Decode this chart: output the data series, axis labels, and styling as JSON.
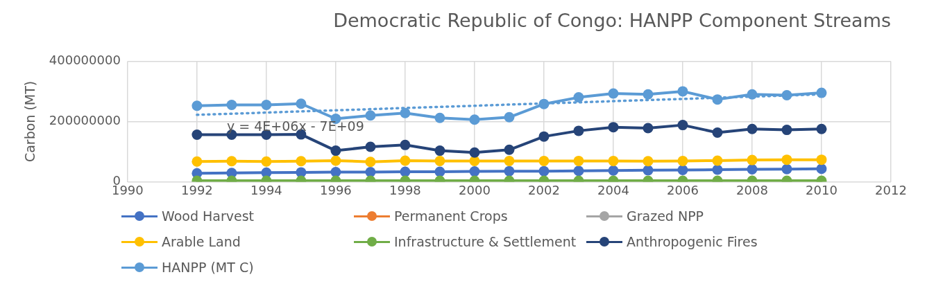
{
  "chart_data": {
    "type": "line",
    "title": "Democratic Republic of Congo: HANPP Component Streams",
    "ylabel": "Carbon (MT)",
    "x": [
      1992,
      1993,
      1994,
      1995,
      1996,
      1997,
      1998,
      1999,
      2000,
      2001,
      2002,
      2003,
      2004,
      2005,
      2006,
      2007,
      2008,
      2009,
      2010
    ],
    "xlim": [
      1990,
      2012
    ],
    "xticks": [
      1990,
      1992,
      1994,
      1996,
      1998,
      2000,
      2002,
      2004,
      2006,
      2008,
      2010,
      2012
    ],
    "ylim": [
      0,
      400000000
    ],
    "yticks": [
      0,
      200000000,
      400000000
    ],
    "grid": true,
    "legend": "bottom",
    "marker": "circle",
    "line_style": "solid",
    "series": [
      {
        "name": "Wood Harvest",
        "color": "#4472c4",
        "values": [
          28000000,
          29000000,
          30000000,
          31000000,
          32000000,
          32000000,
          33000000,
          33000000,
          34000000,
          35000000,
          35000000,
          36000000,
          37000000,
          38000000,
          39000000,
          40000000,
          41000000,
          42000000,
          43000000
        ]
      },
      {
        "name": "Permanent Crops",
        "color": "#ed7d31",
        "values": [
          null,
          null,
          null,
          null,
          null,
          null,
          null,
          null,
          null,
          null,
          null,
          null,
          null,
          null,
          null,
          null,
          null,
          null,
          null
        ]
      },
      {
        "name": "Grazed NPP",
        "color": "#a5a5a5",
        "values": [
          null,
          null,
          null,
          null,
          null,
          null,
          null,
          null,
          null,
          null,
          null,
          null,
          null,
          null,
          null,
          null,
          null,
          null,
          null
        ]
      },
      {
        "name": "Arable Land",
        "color": "#ffc000",
        "values": [
          67000000,
          68000000,
          67000000,
          68000000,
          70000000,
          66000000,
          70000000,
          69000000,
          69000000,
          69000000,
          69000000,
          69000000,
          69000000,
          68000000,
          69000000,
          70000000,
          72000000,
          73000000,
          73000000
        ]
      },
      {
        "name": "Infrastructure & Settlement",
        "color": "#70ad47",
        "values": [
          3000000,
          3000000,
          3000000,
          3000000,
          3000000,
          3000000,
          3000000,
          3000000,
          3000000,
          3000000,
          3000000,
          3000000,
          3000000,
          3000000,
          3000000,
          3000000,
          3000000,
          3000000,
          3000000
        ]
      },
      {
        "name": "Anthropogenic Fires",
        "color": "#264478",
        "values": [
          156000000,
          156000000,
          156000000,
          157000000,
          103000000,
          116000000,
          122000000,
          103000000,
          97000000,
          106000000,
          150000000,
          169000000,
          181000000,
          178000000,
          188000000,
          163000000,
          175000000,
          172000000,
          175000000
        ]
      },
      {
        "name": "HANPP (MT C)",
        "color": "#5b9bd5",
        "values": [
          252000000,
          255000000,
          255000000,
          259000000,
          209000000,
          220000000,
          228000000,
          212000000,
          206000000,
          214000000,
          258000000,
          280000000,
          293000000,
          290000000,
          300000000,
          273000000,
          290000000,
          287000000,
          295000000
        ]
      },
      {
        "type": "line",
        "color": "#5b9bd5",
        "x": [
          1992,
          2010
        ],
        "values": [
          222000000,
          290000000
        ],
        "line_style": "dotted",
        "marker": "none"
      }
    ],
    "annotations": [
      "y = 4E+06x - 7E+09"
    ]
  }
}
